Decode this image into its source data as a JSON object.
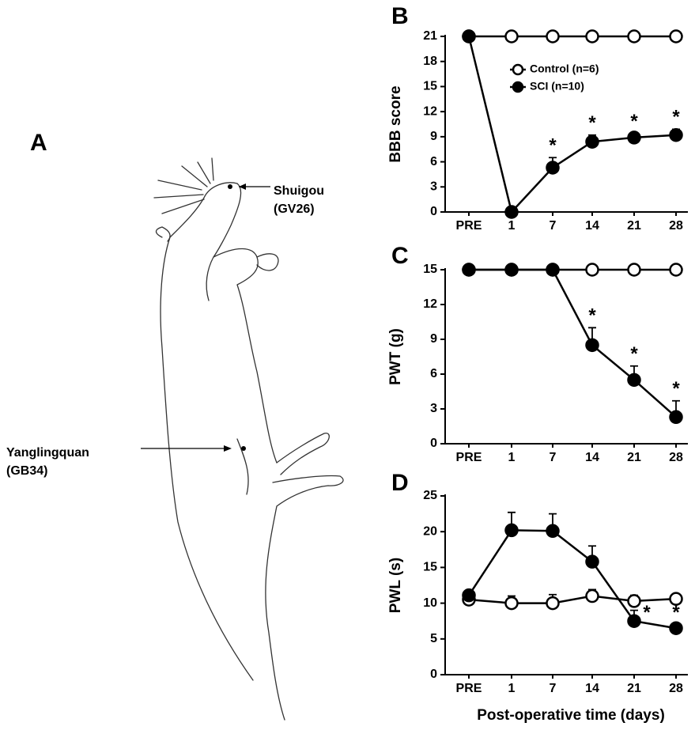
{
  "figure_a": {
    "panel_label": "A",
    "acupoints": [
      {
        "name": "Shuigou",
        "code": "(GV26)"
      },
      {
        "name": "Yanglingquan",
        "code": "(GB34)"
      }
    ]
  },
  "chart_data": [
    {
      "type": "line",
      "panel_label": "B",
      "ylabel": "BBB score",
      "categories": [
        "PRE",
        "1",
        "7",
        "14",
        "21",
        "28"
      ],
      "ylim": [
        0,
        21
      ],
      "yticks": [
        0,
        3,
        6,
        9,
        12,
        15,
        18,
        21
      ],
      "legend": "upper center",
      "series": [
        {
          "name": "Control (n=6)",
          "color": "#000000",
          "marker_fill": "#ffffff",
          "values": [
            21,
            21,
            21,
            21,
            21,
            21
          ],
          "errors": [
            0,
            0,
            0,
            0,
            0,
            0
          ]
        },
        {
          "name": "SCI (n=10)",
          "color": "#000000",
          "marker_fill": "#000000",
          "values": [
            21,
            0,
            5.3,
            8.4,
            8.9,
            9.2
          ],
          "errors": [
            0,
            0,
            1.2,
            0.8,
            0.5,
            0.7
          ],
          "significance": [
            null,
            null,
            "*",
            "*",
            "*",
            "*"
          ]
        }
      ]
    },
    {
      "type": "line",
      "panel_label": "C",
      "ylabel": "PWT (g)",
      "categories": [
        "PRE",
        "1",
        "7",
        "14",
        "21",
        "28"
      ],
      "ylim": [
        0,
        15
      ],
      "yticks": [
        0,
        3,
        6,
        9,
        12,
        15
      ],
      "series": [
        {
          "color": "#000000",
          "marker_fill": "#ffffff",
          "values": [
            15,
            15,
            15,
            15,
            15,
            15
          ],
          "errors": [
            0,
            0,
            0,
            0,
            0,
            0
          ]
        },
        {
          "color": "#000000",
          "marker_fill": "#000000",
          "values": [
            15,
            15,
            15,
            8.5,
            5.5,
            2.3
          ],
          "errors": [
            0,
            0,
            0,
            1.5,
            1.2,
            1.4
          ],
          "significance": [
            null,
            null,
            null,
            "*",
            "*",
            "*"
          ]
        }
      ]
    },
    {
      "type": "line",
      "panel_label": "D",
      "ylabel": "PWL (s)",
      "xlabel": "Post-operative time (days)",
      "categories": [
        "PRE",
        "1",
        "7",
        "14",
        "21",
        "28"
      ],
      "ylim": [
        0,
        25
      ],
      "yticks": [
        0,
        5,
        10,
        15,
        20,
        25
      ],
      "series": [
        {
          "color": "#000000",
          "marker_fill": "#ffffff",
          "values": [
            10.5,
            10,
            10,
            11,
            10.3,
            10.6
          ],
          "errors": [
            0,
            1,
            1.2,
            0.9,
            0.8,
            0.5
          ]
        },
        {
          "color": "#000000",
          "marker_fill": "#000000",
          "values": [
            11.1,
            20.2,
            20.1,
            15.8,
            7.5,
            6.5
          ],
          "errors": [
            0.5,
            2.5,
            2.4,
            2.2,
            1.5,
            0.5
          ],
          "significance": [
            null,
            null,
            null,
            null,
            "*",
            "*"
          ]
        }
      ]
    }
  ]
}
